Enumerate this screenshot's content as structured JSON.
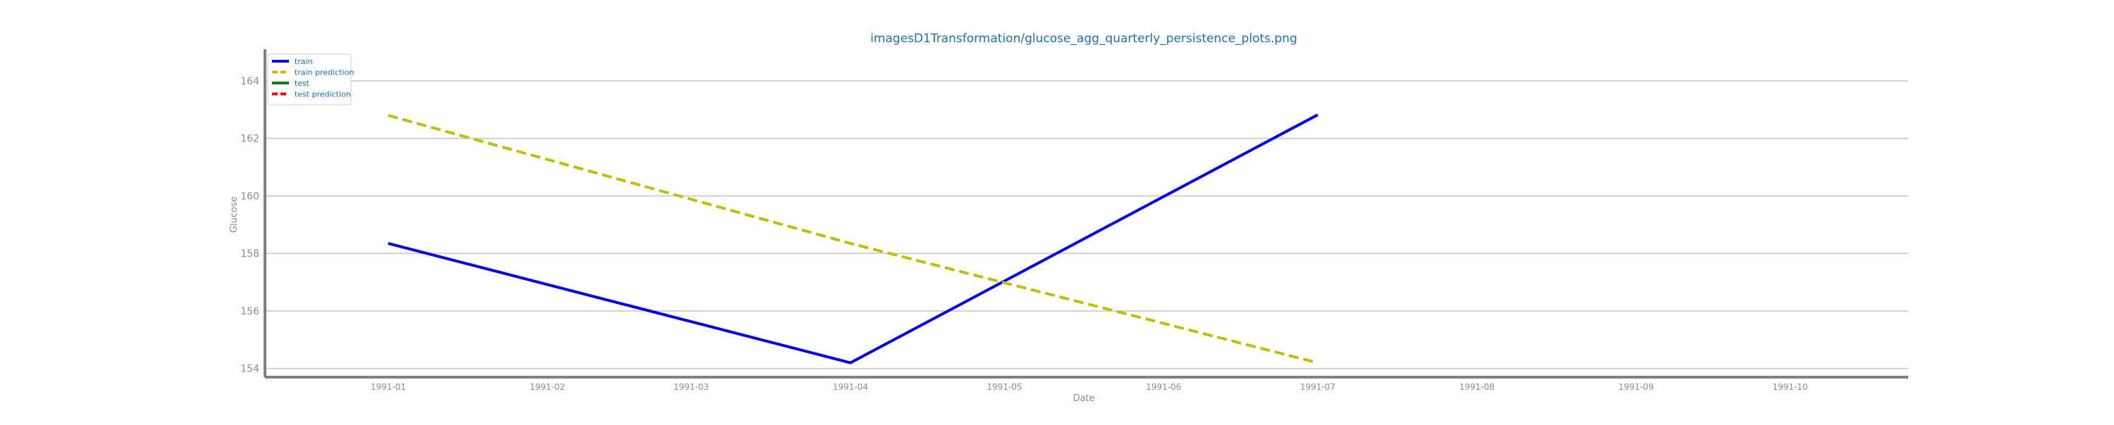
{
  "chart_data": {
    "type": "line",
    "title": "imagesD1Transformation/glucose_agg_quarterly_persistence_plots.png",
    "xlabel": "Date",
    "ylabel": "Glucose",
    "x_ticks": [
      "1991-01",
      "1991-02",
      "1991-03",
      "1991-04",
      "1991-05",
      "1991-06",
      "1991-07",
      "1991-08",
      "1991-09",
      "1991-10"
    ],
    "y_ticks": [
      154,
      156,
      158,
      160,
      162,
      164
    ],
    "xlim": [
      "1990-12-08",
      "1991-10-24"
    ],
    "ylim": [
      153.7,
      165.1
    ],
    "grid": "horizontal",
    "legend_position": "top-left",
    "series": [
      {
        "name": "train",
        "color": "#0000ee",
        "style": "solid",
        "points": [
          {
            "x": "1991-01-01",
            "y": 158.35
          },
          {
            "x": "1991-04-01",
            "y": 154.2
          },
          {
            "x": "1991-07-01",
            "y": 162.82
          }
        ]
      },
      {
        "name": "train prediction",
        "color": "#bfbf00",
        "style": "dashed",
        "points": [
          {
            "x": "1991-01-01",
            "y": 162.8
          },
          {
            "x": "1991-04-01",
            "y": 158.35
          },
          {
            "x": "1991-07-01",
            "y": 154.2
          }
        ]
      },
      {
        "name": "test",
        "color": "#008000",
        "style": "solid",
        "points": []
      },
      {
        "name": "test prediction",
        "color": "#ff0000",
        "style": "dashed",
        "points": []
      }
    ]
  }
}
